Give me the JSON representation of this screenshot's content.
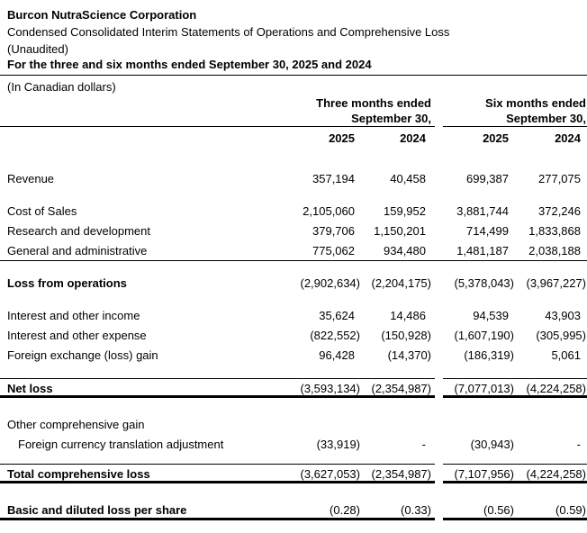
{
  "document": {
    "company_name": "Burcon NutraScience Corporation",
    "statement_title": "Condensed Consolidated Interim Statements of Operations and Comprehensive Loss",
    "audit_status": "(Unaudited)",
    "period_title": "For the three and six months ended September 30, 2025 and 2024",
    "currency_note": "(In Canadian dollars)"
  },
  "table": {
    "column_groups": [
      {
        "period": "Three months ended",
        "date": "September 30,",
        "years": [
          "2025",
          "2024"
        ]
      },
      {
        "period": "Six months ended",
        "date": "September 30,",
        "years": [
          "2025",
          "2024"
        ]
      }
    ],
    "rows": [
      {
        "type": "spacer",
        "size": "xl"
      },
      {
        "type": "data",
        "label": "Revenue",
        "values": [
          "357,194",
          "40,458",
          "699,387",
          "277,075"
        ]
      },
      {
        "type": "spacer",
        "size": "md"
      },
      {
        "type": "data",
        "label": "Cost of Sales",
        "values": [
          "2,105,060",
          "159,952",
          "3,881,744",
          "372,246"
        ]
      },
      {
        "type": "data",
        "label": "Research and development",
        "values": [
          "379,706",
          "1,150,201",
          "714,499",
          "1,833,868"
        ]
      },
      {
        "type": "data",
        "label": "General and administrative",
        "values": [
          "775,062",
          "934,480",
          "1,481,187",
          "2,038,188"
        ],
        "rule_below": "full-thin"
      },
      {
        "type": "spacer",
        "size": "md"
      },
      {
        "type": "data",
        "label": "Loss from operations",
        "bold": true,
        "values": [
          "(2,902,634)",
          "(2,204,175)",
          "(5,378,043)",
          "(3,967,227)"
        ]
      },
      {
        "type": "spacer",
        "size": "md"
      },
      {
        "type": "data",
        "label": "Interest and other income",
        "values": [
          "35,624",
          "14,486",
          "94,539",
          "43,903"
        ]
      },
      {
        "type": "data",
        "label": "Interest and other expense",
        "values": [
          "(822,552)",
          "(150,928)",
          "(1,607,190)",
          "(305,995)"
        ]
      },
      {
        "type": "data",
        "label": "Foreign exchange (loss) gain",
        "values": [
          "96,428",
          "(14,370)",
          "(186,319)",
          "5,061"
        ]
      },
      {
        "type": "spacer",
        "size": "md"
      },
      {
        "type": "data",
        "label": "Net loss",
        "bold": true,
        "values": [
          "(3,593,134)",
          "(2,354,987)",
          "(7,077,013)",
          "(4,224,258)"
        ],
        "rule_above": "group-thin",
        "rule_below": "group-thick"
      },
      {
        "type": "spacer",
        "size": "lg"
      },
      {
        "type": "data",
        "label": "Other comprehensive gain",
        "values": [
          "",
          "",
          "",
          ""
        ]
      },
      {
        "type": "data",
        "label": "Foreign currency translation adjustment",
        "indent": true,
        "values": [
          "(33,919)",
          "-",
          "(30,943)",
          "-"
        ]
      },
      {
        "type": "spacer",
        "size": "sm"
      },
      {
        "type": "data",
        "label": "Total comprehensive loss",
        "bold": true,
        "values": [
          "(3,627,053)",
          "(2,354,987)",
          "(7,107,956)",
          "(4,224,258)"
        ],
        "rule_above": "group-thin",
        "rule_below": "group-thick"
      },
      {
        "type": "spacer",
        "size": "lg"
      },
      {
        "type": "data",
        "label": "Basic and diluted loss per share",
        "bold": true,
        "values": [
          "(0.28)",
          "(0.33)",
          "(0.56)",
          "(0.59)"
        ],
        "rule_below": "group-thick"
      }
    ]
  }
}
